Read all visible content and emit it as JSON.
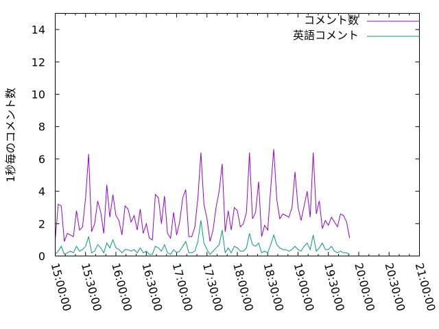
{
  "chart_data": {
    "type": "line",
    "title": "",
    "xlabel": "",
    "ylabel": "1秒毎のコメント数",
    "xlim_minutes_from_15": [
      0,
      360
    ],
    "ylim": [
      0,
      15
    ],
    "y_ticks": [
      "0",
      "2",
      "4",
      "6",
      "8",
      "10",
      "12",
      "14"
    ],
    "x_ticks": [
      "15:00:00",
      "15:30:00",
      "16:00:00",
      "16:30:00",
      "17:00:00",
      "17:30:00",
      "18:00:00",
      "18:30:00",
      "19:00:00",
      "19:30:00",
      "20:00:00",
      "20:30:00",
      "21:00:00"
    ],
    "legend_position": "top-right",
    "x_step_minutes": 3,
    "series": [
      {
        "name": "コメント数",
        "color": "#9400d3",
        "values": [
          1.0,
          3.2,
          3.1,
          0.9,
          1.4,
          1.3,
          1.2,
          2.8,
          1.6,
          1.8,
          3.6,
          6.3,
          1.5,
          2.0,
          3.4,
          2.7,
          1.4,
          4.4,
          2.4,
          3.8,
          2.5,
          2.2,
          1.3,
          3.1,
          2.9,
          2.1,
          2.5,
          1.6,
          2.9,
          1.4,
          2.0,
          1.1,
          1.0,
          3.8,
          3.6,
          2.0,
          3.7,
          1.4,
          1.1,
          2.7,
          1.3,
          2.1,
          3.6,
          4.1,
          1.2,
          1.2,
          1.8,
          3.6,
          6.4,
          3.2,
          2.3,
          0.9,
          1.6,
          3.0,
          4.0,
          5.7,
          1.5,
          2.8,
          1.6,
          3.0,
          2.8,
          1.8,
          2.0,
          2.7,
          6.4,
          2.3,
          2.7,
          4.6,
          1.2,
          1.9,
          1.6,
          4.2,
          6.6,
          3.5,
          2.3,
          2.6,
          2.5,
          2.4,
          3.0,
          5.2,
          3.0,
          2.2,
          3.1,
          4.0,
          2.4,
          6.4,
          2.6,
          3.4,
          1.7,
          2.2,
          1.9,
          2.4,
          2.1,
          1.8,
          2.6,
          2.5,
          2.1,
          1.1
        ]
      },
      {
        "name": "英語コメント",
        "color": "#009e73",
        "values": [
          0.1,
          0.3,
          0.6,
          0.1,
          0.2,
          0.3,
          0.2,
          0.6,
          0.3,
          0.4,
          0.6,
          1.2,
          0.2,
          0.3,
          0.7,
          0.5,
          0.2,
          0.8,
          0.5,
          1.0,
          0.5,
          0.4,
          0.2,
          0.4,
          0.4,
          0.3,
          0.4,
          0.2,
          0.5,
          0.2,
          0.3,
          0.1,
          0.1,
          0.6,
          0.5,
          0.3,
          0.7,
          0.2,
          0.1,
          0.4,
          0.2,
          0.3,
          0.6,
          0.9,
          0.2,
          0.2,
          0.3,
          0.9,
          2.2,
          0.8,
          0.4,
          0.1,
          0.3,
          0.5,
          0.7,
          1.6,
          0.2,
          0.5,
          0.2,
          0.6,
          0.5,
          0.3,
          0.3,
          0.5,
          1.4,
          0.7,
          0.6,
          0.8,
          0.2,
          0.3,
          0.2,
          0.7,
          1.3,
          0.7,
          0.5,
          0.4,
          0.4,
          0.3,
          0.4,
          0.6,
          0.4,
          0.3,
          0.6,
          0.8,
          0.4,
          1.3,
          0.3,
          0.5,
          0.8,
          0.4,
          0.4,
          0.6,
          0.3,
          0.2,
          0.3,
          0.2,
          0.2,
          0.1
        ]
      }
    ]
  }
}
